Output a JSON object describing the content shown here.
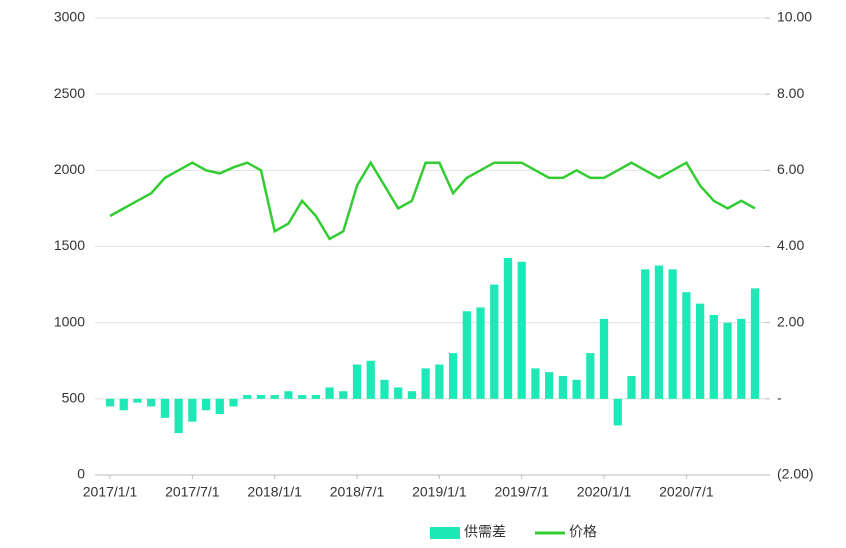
{
  "chart_data": {
    "type": "bar-line",
    "categories": [
      "2017/1/1",
      null,
      null,
      null,
      null,
      null,
      "2017/7/1",
      null,
      null,
      null,
      null,
      null,
      "2018/1/1",
      null,
      null,
      null,
      null,
      null,
      "2018/7/1",
      null,
      null,
      null,
      null,
      null,
      "2019/1/1",
      null,
      null,
      null,
      null,
      null,
      "2019/7/1",
      null,
      null,
      null,
      null,
      null,
      "2020/1/1",
      null,
      null,
      null,
      null,
      null,
      "2020/7/1",
      null,
      null,
      null,
      null,
      null
    ],
    "series": [
      {
        "name": "供需差",
        "type": "bar",
        "axis": "y2",
        "color": "#1de9b6",
        "values": [
          -0.2,
          -0.3,
          -0.1,
          -0.2,
          -0.5,
          -0.9,
          -0.6,
          -0.3,
          -0.4,
          -0.2,
          0.1,
          0.1,
          0.1,
          0.2,
          0.1,
          0.1,
          0.3,
          0.2,
          0.9,
          1.0,
          0.5,
          0.3,
          0.2,
          0.8,
          0.9,
          1.2,
          2.3,
          2.4,
          3.0,
          3.7,
          3.6,
          0.8,
          0.7,
          0.6,
          0.5,
          1.2,
          2.1,
          -0.7,
          0.6,
          3.4,
          3.5,
          3.4,
          2.8,
          2.5,
          2.2,
          2.0,
          2.1,
          2.9
        ]
      },
      {
        "name": "价格",
        "type": "line",
        "axis": "y",
        "color": "#33cc33",
        "values": [
          1700,
          1750,
          1800,
          1850,
          1950,
          2000,
          2050,
          2000,
          1980,
          2020,
          2050,
          2000,
          1600,
          1650,
          1800,
          1700,
          1550,
          1600,
          1900,
          2050,
          1900,
          1750,
          1800,
          2050,
          2050,
          1850,
          1950,
          2000,
          2050,
          2050,
          2050,
          2000,
          1950,
          1950,
          2000,
          1950,
          1950,
          2000,
          2050,
          2000,
          1950,
          2000,
          2050,
          1900,
          1800,
          1750,
          1800,
          1750
        ]
      }
    ],
    "ylim": [
      0,
      3000
    ],
    "yticks": [
      0,
      500,
      1000,
      1500,
      2000,
      2500,
      3000
    ],
    "y2lim": [
      -2,
      10
    ],
    "y2ticks": [
      {
        "value": -2,
        "label": "(2.00)"
      },
      {
        "value": 0,
        "label": "-"
      },
      {
        "value": 2,
        "label": "2.00"
      },
      {
        "value": 4,
        "label": "4.00"
      },
      {
        "value": 6,
        "label": "6.00"
      },
      {
        "value": 8,
        "label": "8.00"
      },
      {
        "value": 10,
        "label": "10.00"
      }
    ],
    "grid": true,
    "legend": "bottom"
  }
}
